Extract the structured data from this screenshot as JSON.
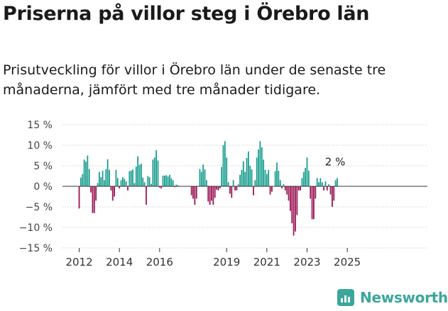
{
  "title": "Priserna på villor steg i Örebro län",
  "subtitle": "Prisutveckling för villor i Örebro län under de senaste tre månaderna, jämfört med tre månader tidigare.",
  "brand": "Newsworthy",
  "colors": {
    "positive": "#1a9e8f",
    "negative": "#9c1655",
    "brand": "#3aa79a"
  },
  "chart_data": {
    "type": "bar",
    "title": "Priserna på villor steg i Örebro län",
    "ylim": [
      -15,
      15
    ],
    "yticks": [
      -15,
      -10,
      -5,
      0,
      5,
      10,
      15
    ],
    "ytick_labels": [
      "−15 %",
      "−10 %",
      "−5 %",
      "0 %",
      "5 %",
      "10 %",
      "15 %"
    ],
    "xtick_labels": [
      "2012",
      "2014",
      "2016",
      "2019",
      "2021",
      "2023",
      "2025"
    ],
    "xtick_positions": [
      1,
      25,
      49,
      89,
      113,
      137,
      161
    ],
    "annotation": "2 %",
    "grid": true,
    "start": "2012-01",
    "values": [
      -5.4,
      2.1,
      3.0,
      6.5,
      6.0,
      7.5,
      4.2,
      -1.5,
      -6.5,
      -6.5,
      -3.5,
      0.8,
      3.5,
      2.2,
      3.8,
      1.5,
      4.2,
      6.6,
      4.0,
      -1.0,
      -3.5,
      -2.5,
      4.0,
      2.0,
      -0.5,
      1.5,
      2.2,
      1.8,
      1.2,
      -1.0,
      3.7,
      3.8,
      4.1,
      0.8,
      4.8,
      7.3,
      5.2,
      5.5,
      2.1,
      1.0,
      -4.5,
      2.5,
      2.2,
      0.6,
      6.5,
      7.0,
      8.8,
      6.3,
      -0.3,
      -0.5,
      2.6,
      2.6,
      2.7,
      2.4,
      2.8,
      2.0,
      1.5,
      -0.2,
      0.4,
      0.2,
      0.0,
      0.0,
      0.0,
      0.0,
      0.0,
      0.0,
      0.0,
      -2.2,
      -3.0,
      -4.5,
      -3.0,
      0.0,
      4.2,
      3.5,
      5.3,
      4.1,
      1.5,
      -3.7,
      -4.5,
      -3.5,
      -4.5,
      -2.8,
      -0.8,
      -1.0,
      -0.5,
      4.7,
      10.0,
      11.0,
      7.0,
      1.0,
      -1.8,
      -2.8,
      1.5,
      -1.0,
      -1.0,
      0.5,
      2.8,
      4.0,
      6.1,
      3.5,
      6.9,
      8.5,
      5.0,
      4.1,
      -2.2,
      1.5,
      7.0,
      9.0,
      11.0,
      9.5,
      6.5,
      4.0,
      3.0,
      4.0,
      -2.0,
      -1.3,
      0.0,
      3.7,
      5.8,
      3.8,
      1.5,
      -0.5,
      0.5,
      -1.0,
      -2.0,
      -3.5,
      -6.0,
      -9.0,
      -12.0,
      -11.0,
      -7.0,
      -1.0,
      -1.0,
      2.0,
      3.5,
      4.5,
      7.0,
      3.8,
      -3.0,
      -8.0,
      -8.0,
      -3.0,
      2.0,
      1.0,
      2.0,
      1.0,
      -1.0,
      1.2,
      -1.0,
      0.5,
      -2.0,
      -5.0,
      -3.5,
      1.5,
      2.0,
      0.0
    ]
  }
}
